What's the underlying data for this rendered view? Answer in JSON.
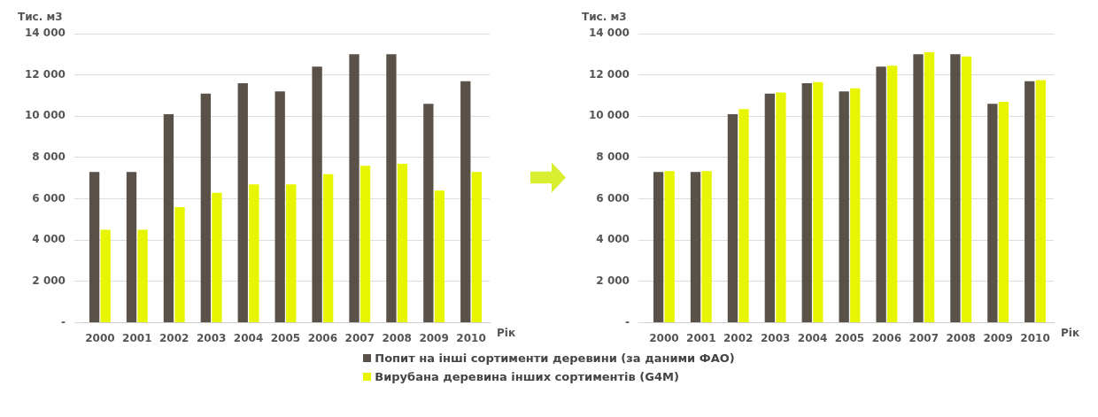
{
  "chart_data": [
    {
      "type": "bar",
      "ylabel": "Тис. м3",
      "xlabel": "Рік",
      "categories": [
        "2000",
        "2001",
        "2002",
        "2003",
        "2004",
        "2005",
        "2006",
        "2007",
        "2008",
        "2009",
        "2010"
      ],
      "series": [
        {
          "name": "Попит на інші сортименти деревини (за даними ФАО)",
          "color": "#5a5249",
          "values": [
            7300,
            7300,
            10100,
            11100,
            11600,
            11200,
            12400,
            13000,
            13000,
            10600,
            11700
          ]
        },
        {
          "name": "Вирубана деревина інших сортиментів (G4M)",
          "color": "#e8f500",
          "values": [
            4500,
            4500,
            5600,
            6300,
            6700,
            6700,
            7200,
            7600,
            7700,
            6400,
            7300
          ]
        }
      ],
      "ylim": [
        0,
        14000
      ],
      "yticks": [
        {
          "value": 0,
          "label": "-"
        },
        {
          "value": 2000,
          "label": "2 000"
        },
        {
          "value": 4000,
          "label": "4 000"
        },
        {
          "value": 6000,
          "label": "6 000"
        },
        {
          "value": 8000,
          "label": "8 000"
        },
        {
          "value": 10000,
          "label": "10 000"
        },
        {
          "value": 12000,
          "label": "12 000"
        },
        {
          "value": 14000,
          "label": "14 000"
        }
      ],
      "grid": "y",
      "legend": "bottom"
    },
    {
      "type": "bar",
      "ylabel": "Тис. м3",
      "xlabel": "Рік",
      "categories": [
        "2000",
        "2001",
        "2002",
        "2003",
        "2004",
        "2005",
        "2006",
        "2007",
        "2008",
        "2009",
        "2010"
      ],
      "series": [
        {
          "color": "#5a5249",
          "values": [
            7300,
            7300,
            10100,
            11100,
            11600,
            11200,
            12400,
            13000,
            13000,
            10600,
            11700
          ]
        },
        {
          "color": "#e8f500",
          "values": [
            7350,
            7350,
            10350,
            11150,
            11650,
            11350,
            12450,
            13100,
            12900,
            10700,
            11750
          ]
        }
      ],
      "ylim": [
        0,
        14000
      ],
      "yticks": [
        {
          "value": 0,
          "label": "-"
        },
        {
          "value": 2000,
          "label": "2 000"
        },
        {
          "value": 4000,
          "label": "4 000"
        },
        {
          "value": 6000,
          "label": "6 000"
        },
        {
          "value": 8000,
          "label": "8 000"
        },
        {
          "value": 10000,
          "label": "10 000"
        },
        {
          "value": 12000,
          "label": "12 000"
        },
        {
          "value": 14000,
          "label": "14 000"
        }
      ],
      "grid": "y"
    }
  ]
}
